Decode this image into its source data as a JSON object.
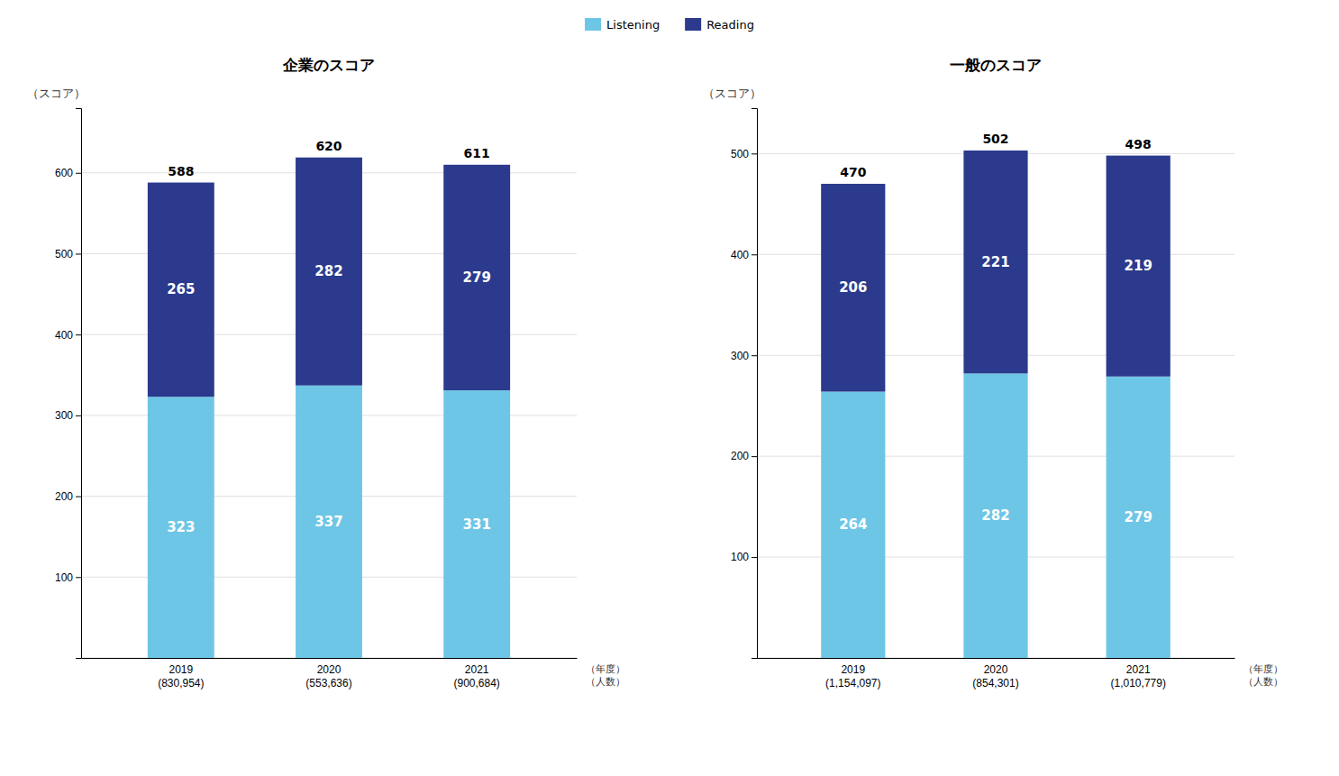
{
  "chart_data": [
    {
      "type": "bar",
      "title": "企業のスコア",
      "stacked": true,
      "data_labels": true,
      "grid": true,
      "legend": "top",
      "categories": [
        "2019\n(830,954)",
        "2020\n(553,636)",
        "2021\n(900,684)"
      ],
      "series": [
        {
          "name": "Listening",
          "color": "#6EC6E6",
          "values": [
            323,
            337,
            331
          ]
        },
        {
          "name": "Reading",
          "color": "#2B3A8C",
          "values": [
            265,
            282,
            279
          ]
        }
      ],
      "totals": [
        588,
        620,
        611
      ],
      "ylabel": "（スコア）",
      "annotations": [
        "（年度）",
        "（人数）"
      ],
      "ylim": [
        0,
        680
      ],
      "yticks": [
        {
          "value": 0,
          "label": null
        },
        100,
        200,
        300,
        400,
        500,
        600
      ]
    },
    {
      "type": "bar",
      "title": "一般のスコア",
      "stacked": true,
      "data_labels": true,
      "grid": true,
      "legend": "top",
      "categories": [
        "2019\n(1,154,097)",
        "2020\n(854,301)",
        "2021\n(1,010,779)"
      ],
      "series": [
        {
          "name": "Listening",
          "color": "#6EC6E6",
          "values": [
            264,
            282,
            279
          ]
        },
        {
          "name": "Reading",
          "color": "#2B3A8C",
          "values": [
            206,
            221,
            219
          ]
        }
      ],
      "totals": [
        470,
        502,
        498
      ],
      "ylabel": "（スコア）",
      "annotations": [
        "（年度）",
        "（人数）"
      ],
      "ylim": [
        0,
        545
      ],
      "yticks": [
        {
          "value": 0,
          "label": null
        },
        100,
        200,
        300,
        400,
        500
      ]
    }
  ]
}
